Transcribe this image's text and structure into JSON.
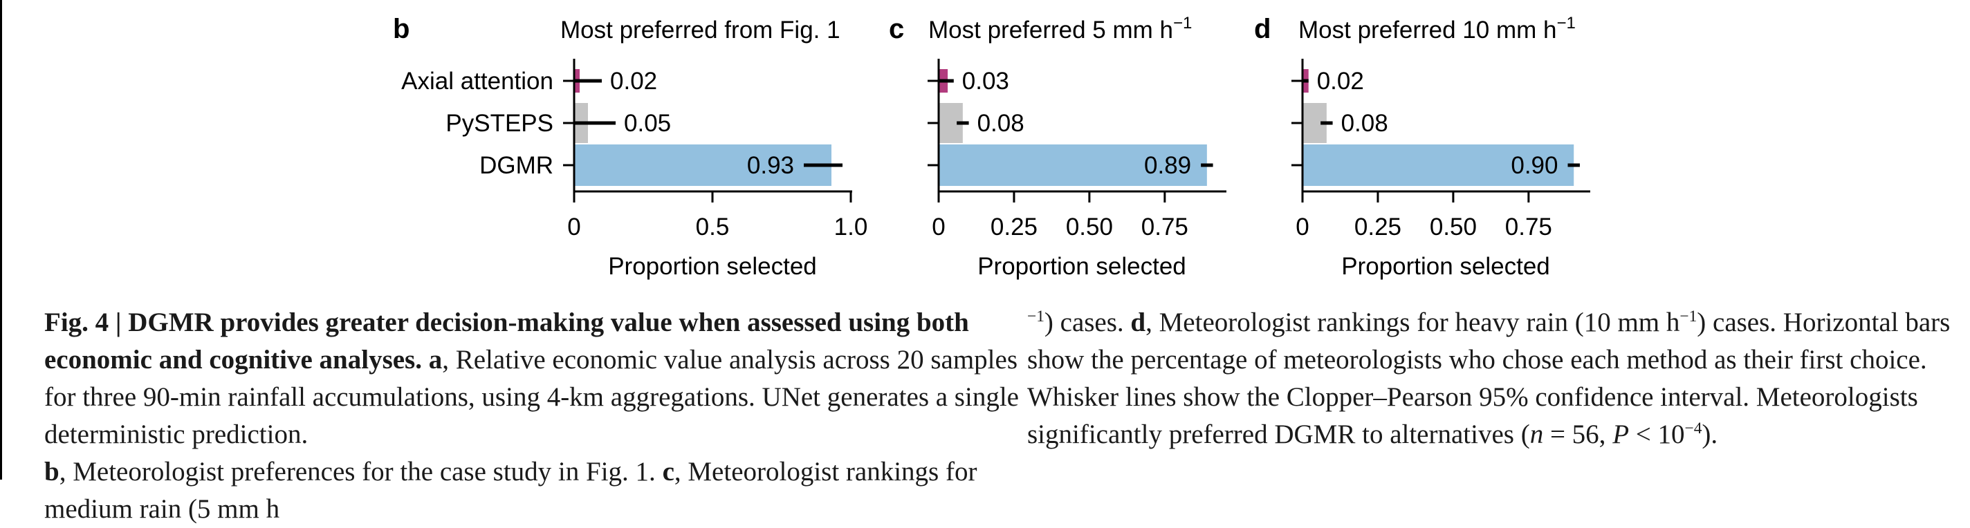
{
  "panels": [
    {
      "letter": "b",
      "title": "Most preferred from Fig. 1",
      "title_sup": "",
      "xlabel": "Proportion selected",
      "xlim": [
        0,
        1.0
      ],
      "ticks": [
        0,
        0.5,
        1.0
      ],
      "tick_labels": [
        "0",
        "0.5",
        "1.0"
      ],
      "chart_data": {
        "type": "bar",
        "orientation": "horizontal",
        "categories": [
          "Axial attention",
          "PySTEPS",
          "DGMR"
        ],
        "values": [
          0.02,
          0.05,
          0.93
        ],
        "ci": [
          [
            0.0,
            0.1
          ],
          [
            0.0,
            0.15
          ],
          [
            0.83,
            0.97
          ]
        ],
        "labels": [
          "0.02",
          "0.05",
          "0.93"
        ],
        "xlabel": "Proportion selected",
        "xlim": [
          0,
          1.0
        ]
      }
    },
    {
      "letter": "c",
      "title": "Most preferred 5 mm h",
      "title_sup": "−1",
      "xlabel": "Proportion selected",
      "xlim": [
        0,
        0.95
      ],
      "ticks": [
        0,
        0.25,
        0.5,
        0.75
      ],
      "tick_labels": [
        "0",
        "0.25",
        "0.50",
        "0.75"
      ],
      "chart_data": {
        "type": "bar",
        "orientation": "horizontal",
        "categories": [
          "Axial attention",
          "PySTEPS",
          "DGMR"
        ],
        "values": [
          0.03,
          0.08,
          0.89
        ],
        "ci": [
          [
            0.0,
            0.05
          ],
          [
            0.06,
            0.1
          ],
          [
            0.87,
            0.91
          ]
        ],
        "labels": [
          "0.03",
          "0.08",
          "0.89"
        ],
        "xlabel": "Proportion selected",
        "xlim": [
          0,
          0.95
        ]
      }
    },
    {
      "letter": "d",
      "title": "Most preferred 10 mm h",
      "title_sup": "−1",
      "xlabel": "Proportion selected",
      "xlim": [
        0,
        0.95
      ],
      "ticks": [
        0,
        0.25,
        0.5,
        0.75
      ],
      "tick_labels": [
        "0",
        "0.25",
        "0.50",
        "0.75"
      ],
      "chart_data": {
        "type": "bar",
        "orientation": "horizontal",
        "categories": [
          "Axial attention",
          "PySTEPS",
          "DGMR"
        ],
        "values": [
          0.02,
          0.08,
          0.9
        ],
        "ci": [
          [
            0.0,
            0.02
          ],
          [
            0.06,
            0.1
          ],
          [
            0.88,
            0.92
          ]
        ],
        "labels": [
          "0.02",
          "0.08",
          "0.90"
        ],
        "xlabel": "Proportion selected",
        "xlim": [
          0,
          0.95
        ]
      }
    }
  ],
  "colors": {
    "axial_attention": "#b23c7e",
    "pysteps": "#c4c4c4",
    "dgmr": "#93c0df",
    "axis": "#000000"
  },
  "caption": {
    "fig_label": "Fig. 4 | ",
    "bold_title": "DGMR provides greater decision-making value when assessed using both economic and cognitive analyses.",
    "a_letter": "a",
    "a_text": ", Relative economic value analysis across 20 samples for three 90-min rainfall accumulations, using 4-km aggregations. UNet generates a single deterministic prediction.",
    "b_letter": "b",
    "b_text": ", Meteorologist preferences for the case study in Fig. 1.",
    "c_letter": "c",
    "c_text_1": ", Meteorologist rankings for medium rain (5 mm h",
    "unit_sup": "−1",
    "c_text_2": ") cases.",
    "d_letter": "d",
    "d_text_1": ", Meteorologist rankings for heavy rain (10 mm h",
    "d_text_2": ") cases. Horizontal bars show the percentage of meteorologists who chose each method as their first choice. Whisker lines show the Clopper–Pearson 95% confidence interval. Meteorologists significantly preferred DGMR to alternatives (",
    "n_var": "n",
    "n_eq": " = 56, ",
    "p_var": "P",
    "p_eq": " < 10",
    "p_sup": "−4",
    "end": ")."
  }
}
